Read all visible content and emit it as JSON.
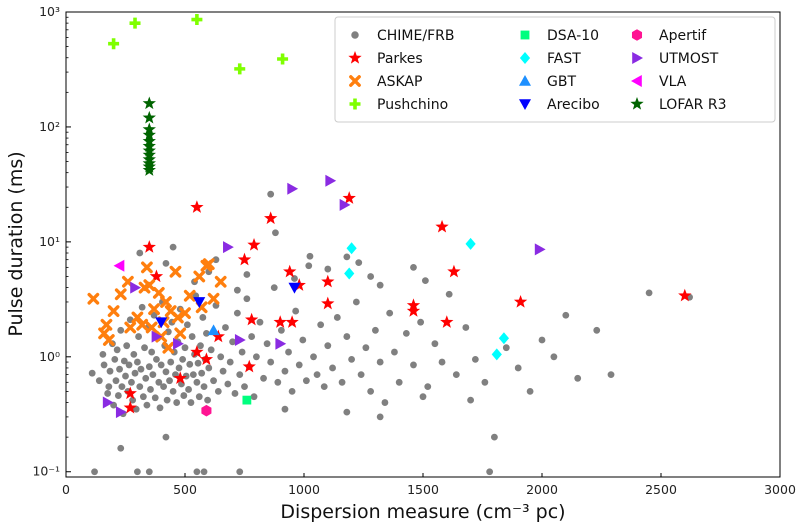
{
  "chart_data": {
    "type": "scatter",
    "xlabel": "Dispersion measure (cm⁻³ pc)",
    "ylabel": "Pulse duration (ms)",
    "xlim": [
      0,
      3000
    ],
    "ylim": [
      0.09,
      1000
    ],
    "y_scale": "log",
    "x_ticks": [
      0,
      500,
      1000,
      1500,
      2000,
      2500,
      3000
    ],
    "x_tick_labels": [
      "0",
      "500",
      "1000",
      "1500",
      "2000",
      "2500",
      "3000"
    ],
    "y_ticks": [
      0.1,
      1,
      10,
      100,
      1000
    ],
    "y_tick_labels": [
      "10⁻¹",
      "10⁰",
      "10¹",
      "10²",
      "10³"
    ],
    "grid": false,
    "legend_position": "top-right",
    "series": [
      {
        "name": "CHIME/FRB",
        "marker": "circle",
        "color": "#808080",
        "points": [
          [
            120,
            0.1
          ],
          [
            300,
            0.1
          ],
          [
            350,
            0.1
          ],
          [
            550,
            0.1
          ],
          [
            580,
            0.1
          ],
          [
            730,
            0.1
          ],
          [
            1780,
            0.1
          ],
          [
            110,
            0.72
          ],
          [
            140,
            0.62
          ],
          [
            155,
            1.05
          ],
          [
            160,
            0.85
          ],
          [
            175,
            0.48
          ],
          [
            180,
            0.55
          ],
          [
            185,
            0.75
          ],
          [
            195,
            1.3
          ],
          [
            200,
            0.38
          ],
          [
            205,
            0.95
          ],
          [
            210,
            0.62
          ],
          [
            215,
            1.15
          ],
          [
            220,
            0.46
          ],
          [
            225,
            0.78
          ],
          [
            230,
            1.7
          ],
          [
            235,
            0.55
          ],
          [
            240,
            0.32
          ],
          [
            245,
            0.92
          ],
          [
            250,
            0.68
          ],
          [
            255,
            1.25
          ],
          [
            260,
            0.5
          ],
          [
            265,
            0.85
          ],
          [
            270,
            2.1
          ],
          [
            275,
            0.6
          ],
          [
            280,
            0.42
          ],
          [
            285,
            1.05
          ],
          [
            290,
            0.72
          ],
          [
            295,
            0.35
          ],
          [
            300,
            0.9
          ],
          [
            305,
            1.5
          ],
          [
            310,
            0.55
          ],
          [
            315,
            0.78
          ],
          [
            320,
            2.7
          ],
          [
            325,
            0.45
          ],
          [
            330,
            1.2
          ],
          [
            335,
            0.65
          ],
          [
            340,
            0.38
          ],
          [
            345,
            1.8
          ],
          [
            350,
            0.82
          ],
          [
            355,
            0.52
          ],
          [
            360,
            1.1
          ],
          [
            365,
            0.7
          ],
          [
            370,
            2.3
          ],
          [
            375,
            0.44
          ],
          [
            380,
            0.95
          ],
          [
            385,
            1.45
          ],
          [
            390,
            0.6
          ],
          [
            395,
            0.36
          ],
          [
            400,
            0.85
          ],
          [
            405,
            3.0
          ],
          [
            410,
            0.55
          ],
          [
            415,
            1.25
          ],
          [
            420,
            0.74
          ],
          [
            425,
            0.42
          ],
          [
            430,
            1.65
          ],
          [
            435,
            0.62
          ],
          [
            440,
            0.9
          ],
          [
            445,
            2.0
          ],
          [
            450,
            0.5
          ],
          [
            455,
            1.1
          ],
          [
            460,
            0.7
          ],
          [
            465,
            0.4
          ],
          [
            470,
            1.35
          ],
          [
            475,
            0.8
          ],
          [
            480,
            2.6
          ],
          [
            485,
            0.58
          ],
          [
            490,
            0.95
          ],
          [
            495,
            0.46
          ],
          [
            500,
            1.2
          ],
          [
            505,
            0.68
          ],
          [
            510,
            1.9
          ],
          [
            515,
            0.52
          ],
          [
            520,
            0.86
          ],
          [
            525,
            0.4
          ],
          [
            530,
            1.5
          ],
          [
            535,
            0.7
          ],
          [
            540,
            1.05
          ],
          [
            545,
            3.4
          ],
          [
            550,
            0.6
          ],
          [
            555,
            0.88
          ],
          [
            560,
            0.45
          ],
          [
            565,
            1.25
          ],
          [
            570,
            0.72
          ],
          [
            575,
            2.2
          ],
          [
            580,
            0.55
          ],
          [
            585,
            0.95
          ],
          [
            590,
            1.6
          ],
          [
            595,
            0.42
          ],
          [
            600,
            0.8
          ],
          [
            610,
            1.15
          ],
          [
            620,
            0.62
          ],
          [
            630,
            2.8
          ],
          [
            640,
            0.5
          ],
          [
            650,
            1.0
          ],
          [
            660,
            0.75
          ],
          [
            670,
            1.8
          ],
          [
            680,
            0.58
          ],
          [
            690,
            0.9
          ],
          [
            700,
            1.35
          ],
          [
            710,
            0.48
          ],
          [
            720,
            2.4
          ],
          [
            730,
            0.7
          ],
          [
            740,
            1.1
          ],
          [
            750,
            0.55
          ],
          [
            760,
            3.2
          ],
          [
            770,
            0.82
          ],
          [
            780,
            1.5
          ],
          [
            790,
            0.45
          ],
          [
            800,
            1.0
          ],
          [
            815,
            2.0
          ],
          [
            830,
            0.65
          ],
          [
            845,
            1.3
          ],
          [
            860,
            0.9
          ],
          [
            875,
            4.0
          ],
          [
            890,
            0.6
          ],
          [
            905,
            1.7
          ],
          [
            920,
            0.75
          ],
          [
            935,
            1.1
          ],
          [
            950,
            0.5
          ],
          [
            965,
            2.5
          ],
          [
            980,
            0.85
          ],
          [
            995,
            1.4
          ],
          [
            1010,
            0.62
          ],
          [
            1025,
            7.5
          ],
          [
            1040,
            1.0
          ],
          [
            1055,
            0.7
          ],
          [
            1070,
            1.9
          ],
          [
            1085,
            0.55
          ],
          [
            1100,
            1.25
          ],
          [
            1120,
            0.8
          ],
          [
            1140,
            2.2
          ],
          [
            1160,
            0.6
          ],
          [
            1180,
            1.5
          ],
          [
            1200,
            0.95
          ],
          [
            1220,
            3.0
          ],
          [
            1240,
            0.7
          ],
          [
            1260,
            1.2
          ],
          [
            1280,
            0.5
          ],
          [
            1300,
            1.7
          ],
          [
            1320,
            0.9
          ],
          [
            1340,
            0.4
          ],
          [
            1360,
            2.4
          ],
          [
            1380,
            1.1
          ],
          [
            1400,
            0.6
          ],
          [
            1430,
            1.6
          ],
          [
            1460,
            0.85
          ],
          [
            1490,
            2.0
          ],
          [
            1520,
            0.55
          ],
          [
            1550,
            1.3
          ],
          [
            1580,
            0.9
          ],
          [
            1610,
            3.5
          ],
          [
            1640,
            0.7
          ],
          [
            1680,
            1.8
          ],
          [
            1720,
            0.95
          ],
          [
            1760,
            0.6
          ],
          [
            1800,
            0.2
          ],
          [
            1850,
            1.2
          ],
          [
            1900,
            0.8
          ],
          [
            1950,
            0.5
          ],
          [
            2000,
            1.4
          ],
          [
            2050,
            1.0
          ],
          [
            2100,
            2.3
          ],
          [
            2150,
            0.65
          ],
          [
            2230,
            1.7
          ],
          [
            2290,
            0.7
          ],
          [
            2450,
            3.6
          ],
          [
            2620,
            3.3
          ],
          [
            310,
            8.0
          ],
          [
            420,
            6.5
          ],
          [
            450,
            9.0
          ],
          [
            540,
            4.5
          ],
          [
            600,
            5.5
          ],
          [
            630,
            7.0
          ],
          [
            720,
            3.8
          ],
          [
            760,
            5.2
          ],
          [
            860,
            26
          ],
          [
            880,
            12
          ],
          [
            960,
            4.8
          ],
          [
            1020,
            6.2
          ],
          [
            1100,
            5.8
          ],
          [
            1180,
            7.4
          ],
          [
            1230,
            6.6
          ],
          [
            1280,
            5.0
          ],
          [
            1320,
            4.2
          ],
          [
            1460,
            6.0
          ],
          [
            1510,
            4.6
          ],
          [
            1320,
            0.3
          ],
          [
            1500,
            0.45
          ],
          [
            1700,
            0.42
          ],
          [
            920,
            0.35
          ],
          [
            1180,
            0.33
          ],
          [
            230,
            0.16
          ],
          [
            420,
            0.2
          ]
        ]
      },
      {
        "name": "Parkes",
        "marker": "star",
        "color": "#ff0000",
        "points": [
          [
            350,
            9.0
          ],
          [
            380,
            5.0
          ],
          [
            550,
            20
          ],
          [
            750,
            7.0
          ],
          [
            790,
            9.4
          ],
          [
            860,
            16
          ],
          [
            940,
            5.5
          ],
          [
            980,
            4.2
          ],
          [
            1100,
            4.5
          ],
          [
            1100,
            2.9
          ],
          [
            1190,
            24
          ],
          [
            1460,
            2.8
          ],
          [
            1460,
            2.5
          ],
          [
            1580,
            13.5
          ],
          [
            1600,
            2.0
          ],
          [
            1630,
            5.5
          ],
          [
            1910,
            3.0
          ],
          [
            2600,
            3.4
          ],
          [
            270,
            0.48
          ],
          [
            270,
            0.36
          ],
          [
            480,
            0.65
          ],
          [
            550,
            1.1
          ],
          [
            590,
            0.95
          ],
          [
            640,
            1.5
          ],
          [
            770,
            0.82
          ],
          [
            780,
            2.1
          ],
          [
            900,
            2.0
          ],
          [
            950,
            2.0
          ]
        ]
      },
      {
        "name": "ASKAP",
        "marker": "x",
        "color": "#ff7f0e",
        "points": [
          [
            115,
            3.2
          ],
          [
            160,
            1.6
          ],
          [
            170,
            1.9
          ],
          [
            180,
            1.4
          ],
          [
            200,
            2.5
          ],
          [
            230,
            3.5
          ],
          [
            260,
            4.5
          ],
          [
            270,
            1.8
          ],
          [
            300,
            2.2
          ],
          [
            320,
            1.9
          ],
          [
            330,
            4.0
          ],
          [
            340,
            6.0
          ],
          [
            350,
            4.2
          ],
          [
            360,
            1.8
          ],
          [
            370,
            2.6
          ],
          [
            390,
            3.6
          ],
          [
            400,
            1.5
          ],
          [
            410,
            2.0
          ],
          [
            420,
            3.0
          ],
          [
            430,
            1.2
          ],
          [
            440,
            2.5
          ],
          [
            460,
            5.5
          ],
          [
            470,
            2.2
          ],
          [
            480,
            1.6
          ],
          [
            500,
            2.4
          ],
          [
            520,
            3.4
          ],
          [
            560,
            5.0
          ],
          [
            570,
            2.7
          ],
          [
            590,
            6.2
          ],
          [
            600,
            6.4
          ],
          [
            620,
            3.2
          ],
          [
            650,
            4.5
          ]
        ]
      },
      {
        "name": "Pushchino",
        "marker": "plus",
        "color": "#7fff00",
        "points": [
          [
            200,
            530
          ],
          [
            290,
            800
          ],
          [
            550,
            860
          ],
          [
            730,
            320
          ],
          [
            910,
            390
          ]
        ]
      },
      {
        "name": "DSA-10",
        "marker": "square",
        "color": "#00ff7f",
        "points": [
          [
            760,
            0.42
          ]
        ]
      },
      {
        "name": "FAST",
        "marker": "diamond",
        "color": "#00ffff",
        "points": [
          [
            1190,
            5.3
          ],
          [
            1200,
            8.8
          ],
          [
            1700,
            9.6
          ],
          [
            1810,
            1.05
          ],
          [
            1840,
            1.45
          ]
        ]
      },
      {
        "name": "GBT",
        "marker": "triangle-up",
        "color": "#1e90ff",
        "points": [
          [
            620,
            1.7
          ]
        ]
      },
      {
        "name": "Arecibo",
        "marker": "triangle-down",
        "color": "#0000ff",
        "points": [
          [
            400,
            2.0
          ],
          [
            560,
            3.0
          ],
          [
            960,
            4.0
          ]
        ]
      },
      {
        "name": "Apertif",
        "marker": "hexagon",
        "color": "#ff1493",
        "points": [
          [
            590,
            0.34
          ]
        ]
      },
      {
        "name": "UTMOST",
        "marker": "triangle-right",
        "color": "#8a2be2",
        "points": [
          [
            175,
            0.4
          ],
          [
            230,
            0.33
          ],
          [
            290,
            4.0
          ],
          [
            380,
            1.5
          ],
          [
            470,
            1.3
          ],
          [
            680,
            9.0
          ],
          [
            730,
            1.4
          ],
          [
            900,
            1.3
          ],
          [
            950,
            29
          ],
          [
            1110,
            34
          ],
          [
            1170,
            21
          ],
          [
            1990,
            8.6
          ]
        ]
      },
      {
        "name": "VLA",
        "marker": "triangle-left",
        "color": "#ff00ff",
        "points": [
          [
            225,
            6.2
          ]
        ]
      },
      {
        "name": "LOFAR R3",
        "marker": "star",
        "color": "#006400",
        "points": [
          [
            350,
            160
          ],
          [
            350,
            120
          ],
          [
            350,
            95
          ],
          [
            350,
            85
          ],
          [
            350,
            75
          ],
          [
            350,
            68
          ],
          [
            350,
            62
          ],
          [
            350,
            57
          ],
          [
            350,
            52
          ],
          [
            350,
            48
          ],
          [
            350,
            45
          ],
          [
            350,
            42
          ]
        ]
      }
    ]
  }
}
